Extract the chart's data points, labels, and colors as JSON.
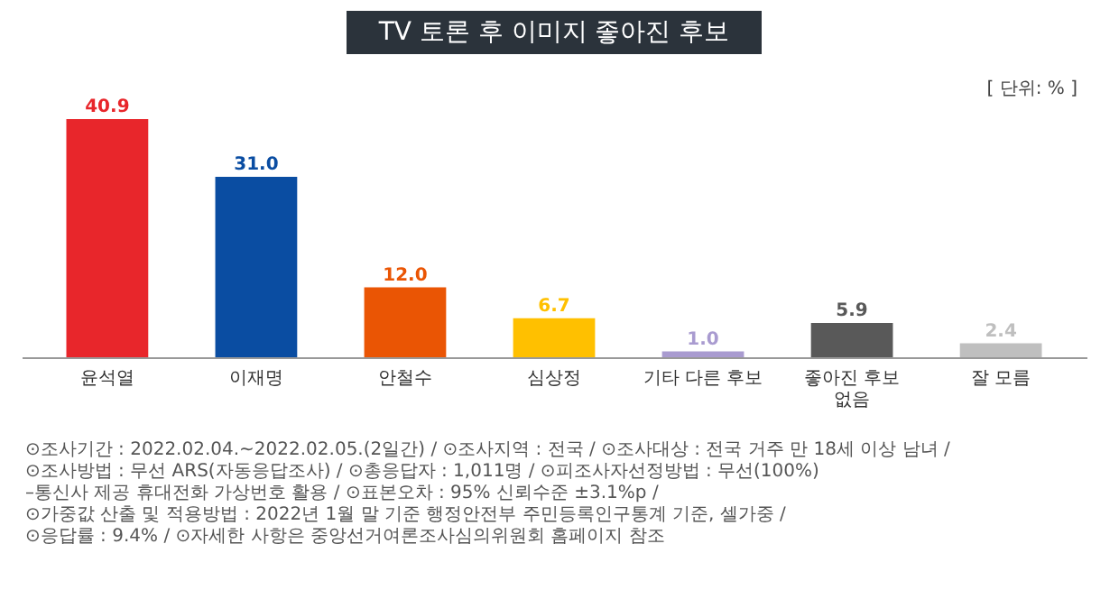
{
  "chart_data": {
    "type": "bar",
    "title": "TV 토론 후 이미지 좋아진 후보",
    "categories": [
      "윤석열",
      "이재명",
      "안철수",
      "심상정",
      "기타 다른 후보",
      "좋아진 후보 없음",
      "잘 모름"
    ],
    "values": [
      40.9,
      31.0,
      12.0,
      6.7,
      1.0,
      5.9,
      2.4
    ],
    "value_labels": [
      "40.9",
      "31.0",
      "12.0",
      "6.7",
      "1.0",
      "5.9",
      "2.4"
    ],
    "colors": [
      "#e8262b",
      "#0a4da2",
      "#ea5504",
      "#ffc000",
      "#a99bd0",
      "#595959",
      "#bfbfbf"
    ],
    "annotations": [
      "[ 단위: % ]",
      "⊙조사기간 : 2022.02.04.~2022.02.05.(2일간) / ⊙조사지역 : 전국 / ⊙조사대상 : 전국 거주 만 18세 이상 남녀 /",
      "⊙조사방법 : 무선 ARS(자동응답조사) / ⊙총응답자 : 1,011명 / ⊙피조사자선정방법 : 무선(100%)",
      "–통신사 제공 휴대전화 가상번호 활용 / ⊙표본오차 : 95% 신뢰수준 ±3.1%p /",
      "⊙가중값 산출 및 적용방법 : 2022년 1월 말 기준 행정안전부 주민등록인구통계 기준, 셀가중 /",
      "⊙응답률 : 9.4% / ⊙자세한 사항은 중앙선거여론조사심의위원회 홈페이지 참조"
    ]
  }
}
